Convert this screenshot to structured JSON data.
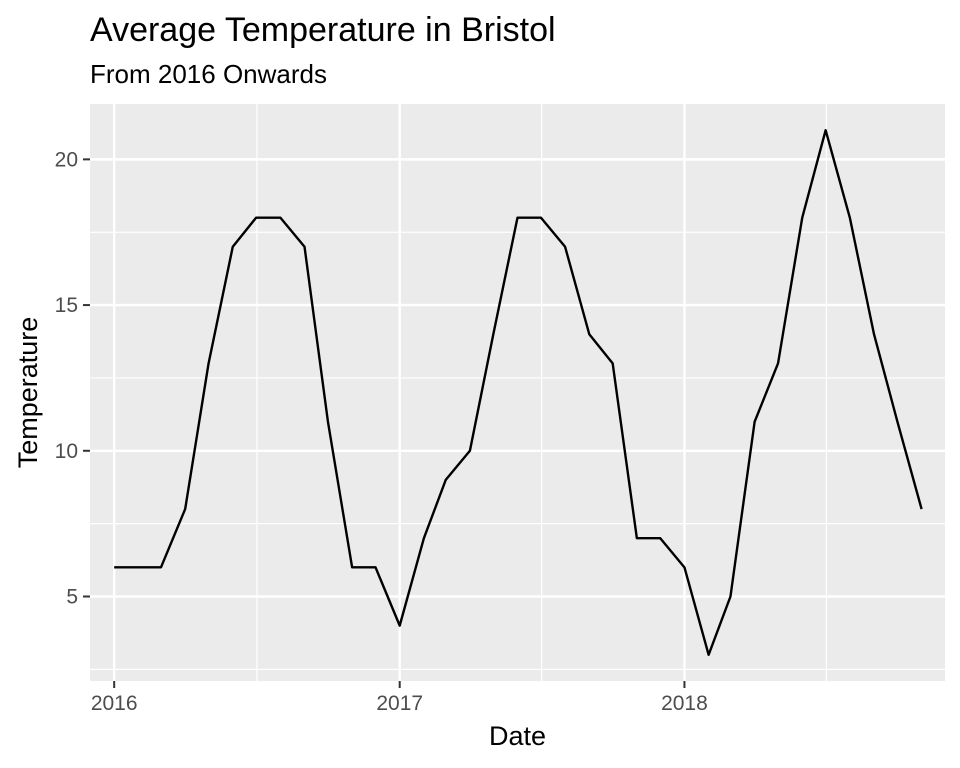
{
  "chart_data": {
    "type": "line",
    "title": "Average Temperature in Bristol",
    "subtitle": "From 2016 Onwards",
    "xlabel": "Date",
    "ylabel": "Temperature",
    "x_ticks": [
      "2016",
      "2017",
      "2018"
    ],
    "y_ticks": [
      5,
      10,
      15,
      20
    ],
    "xlim": [
      "2015-12-01",
      "2018-12-01"
    ],
    "ylim": [
      2.1,
      21.9
    ],
    "grid": true,
    "legend": "none",
    "colors": {
      "panel": "#ebebeb",
      "grid": "#ffffff",
      "line": "#000000",
      "tick_label": "#4d4d4d"
    },
    "series": [
      {
        "x": [
          "2016-01-01",
          "2016-02-01",
          "2016-03-01",
          "2016-04-01",
          "2016-05-01",
          "2016-06-01",
          "2016-07-01",
          "2016-08-01",
          "2016-09-01",
          "2016-10-01",
          "2016-11-01",
          "2016-12-01",
          "2017-01-01",
          "2017-02-01",
          "2017-03-01",
          "2017-04-01",
          "2017-05-01",
          "2017-06-01",
          "2017-07-01",
          "2017-08-01",
          "2017-09-01",
          "2017-10-01",
          "2017-11-01",
          "2017-12-01",
          "2018-01-01",
          "2018-02-01",
          "2018-03-01",
          "2018-04-01",
          "2018-05-01",
          "2018-06-01",
          "2018-07-01",
          "2018-08-01",
          "2018-09-01",
          "2018-10-01",
          "2018-11-01"
        ],
        "values": [
          6,
          6,
          6,
          8,
          13,
          17,
          18,
          18,
          17,
          11,
          6,
          6,
          4,
          7,
          9,
          10,
          14,
          18,
          18,
          17,
          14,
          13,
          7,
          7,
          6,
          3,
          5,
          11,
          13,
          18,
          21,
          18,
          14,
          11,
          8
        ]
      }
    ]
  }
}
